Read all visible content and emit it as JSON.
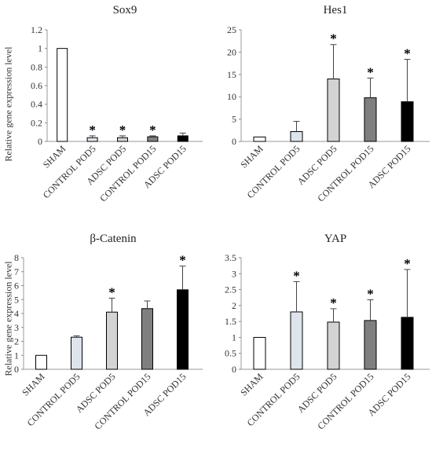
{
  "ylabel_text": "Relative gene expression level",
  "colors": {
    "SHAM": "#ffffff",
    "CONTROL POD5": "#dde4ec",
    "ADSC POD5": "#d3d3d3",
    "CONTROL POD15": "#7f7f7f",
    "ADSC POD15": "#000000"
  },
  "chart_data": [
    {
      "type": "bar",
      "title": "Sox9",
      "categories": [
        "SHAM",
        "CONTROL POD5",
        "ADSC POD5",
        "CONTROL POD15",
        "ADSC POD15"
      ],
      "values": [
        1.0,
        0.04,
        0.04,
        0.05,
        0.06
      ],
      "errors": [
        0,
        0.02,
        0.02,
        0.01,
        0.03
      ],
      "significant": [
        false,
        true,
        true,
        true,
        false
      ],
      "ylim": [
        0,
        1.2
      ],
      "ytick_labels": [
        "0",
        "0.2",
        "0.4",
        "0.6",
        "0.8",
        "1",
        "1.2"
      ],
      "ylabel": "Relative gene expression level"
    },
    {
      "type": "bar",
      "title": "Hes1",
      "categories": [
        "SHAM",
        "CONTROL POD5",
        "ADSC POD5",
        "CONTROL POD15",
        "ADSC POD15"
      ],
      "values": [
        1.0,
        2.2,
        14.0,
        9.8,
        8.9
      ],
      "errors": [
        0,
        2.3,
        7.7,
        4.4,
        9.5
      ],
      "significant": [
        false,
        false,
        true,
        true,
        true
      ],
      "ylim": [
        0,
        25
      ],
      "ytick_labels": [
        "0",
        "5",
        "10",
        "15",
        "20",
        "25"
      ],
      "ylabel": ""
    },
    {
      "type": "bar",
      "title": "β-Catenin",
      "categories": [
        "SHAM",
        "CONTROL POD5",
        "ADSC POD5",
        "CONTROL POD15",
        "ADSC POD15"
      ],
      "values": [
        1.0,
        2.3,
        4.1,
        4.35,
        5.7
      ],
      "errors": [
        0,
        0.1,
        1.0,
        0.55,
        1.7
      ],
      "significant": [
        false,
        false,
        true,
        false,
        true
      ],
      "ylim": [
        0,
        8
      ],
      "ytick_labels": [
        "0",
        "1",
        "2",
        "3",
        "4",
        "5",
        "6",
        "7",
        "8"
      ],
      "ylabel": "Relative gene expression level"
    },
    {
      "type": "bar",
      "title": "YAP",
      "categories": [
        "SHAM",
        "CONTROL POD5",
        "ADSC POD5",
        "CONTROL POD15",
        "ADSC POD15"
      ],
      "values": [
        1.0,
        1.8,
        1.48,
        1.53,
        1.63
      ],
      "errors": [
        0,
        0.95,
        0.42,
        0.65,
        1.5
      ],
      "significant": [
        false,
        true,
        true,
        true,
        true
      ],
      "ylim": [
        0,
        3.5
      ],
      "ytick_labels": [
        "0",
        "0.5",
        "1",
        "1.5",
        "2",
        "2.5",
        "3",
        "3.5"
      ],
      "ylabel": ""
    }
  ]
}
